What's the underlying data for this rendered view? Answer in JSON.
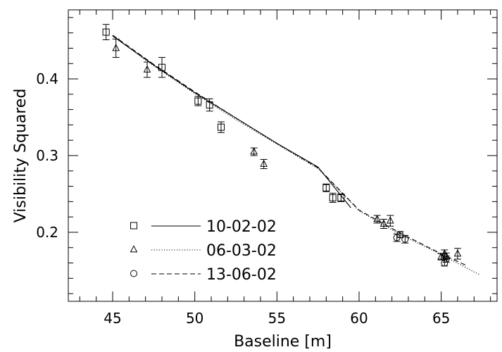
{
  "chart_data": {
    "type": "scatter",
    "title": "",
    "xlabel": "Baseline [m]",
    "ylabel": "Visibility Squared",
    "xlim": [
      42.3,
      68.4
    ],
    "ylim": [
      0.11,
      0.49
    ],
    "xticks": [
      45,
      50,
      55,
      60,
      65
    ],
    "xtick_labels": [
      "45",
      "50",
      "55",
      "60",
      "65"
    ],
    "yticks": [
      0.2,
      0.3,
      0.4
    ],
    "ytick_labels": [
      "0.2",
      "0.3",
      "0.4"
    ],
    "x_minor_step": 1,
    "y_minor_step": 0.02,
    "grid": false,
    "legend": {
      "position": "bottom-left"
    },
    "series": [
      {
        "name": "10-02-02",
        "marker": "square",
        "line_style": "solid",
        "points": [
          {
            "x": 44.6,
            "y": 0.461,
            "err": 0.01
          },
          {
            "x": 48.0,
            "y": 0.415,
            "err": 0.013
          },
          {
            "x": 50.2,
            "y": 0.371,
            "err": 0.006
          },
          {
            "x": 50.9,
            "y": 0.366,
            "err": 0.008
          },
          {
            "x": 51.6,
            "y": 0.337,
            "err": 0.007
          },
          {
            "x": 58.0,
            "y": 0.258,
            "err": 0.005
          },
          {
            "x": 58.4,
            "y": 0.245,
            "err": 0.006
          },
          {
            "x": 58.9,
            "y": 0.245,
            "err": 0.005
          }
        ],
        "model_curve": {
          "x": [
            45.0,
            47.5,
            50.0,
            52.5,
            55.0,
            57.5,
            59.5
          ],
          "y": [
            0.456,
            0.418,
            0.382,
            0.349,
            0.316,
            0.285,
            0.232
          ]
        }
      },
      {
        "name": "06-03-02",
        "marker": "triangle",
        "line_style": "dotted",
        "points": [
          {
            "x": 45.2,
            "y": 0.44,
            "err": 0.012
          },
          {
            "x": 47.1,
            "y": 0.412,
            "err": 0.01
          },
          {
            "x": 53.6,
            "y": 0.305,
            "err": 0.005
          },
          {
            "x": 54.2,
            "y": 0.289,
            "err": 0.006
          },
          {
            "x": 61.1,
            "y": 0.217,
            "err": 0.005
          },
          {
            "x": 61.5,
            "y": 0.211,
            "err": 0.006
          },
          {
            "x": 61.9,
            "y": 0.215,
            "err": 0.007
          },
          {
            "x": 65.0,
            "y": 0.168,
            "err": 0.004
          },
          {
            "x": 65.2,
            "y": 0.172,
            "err": 0.005
          },
          {
            "x": 65.3,
            "y": 0.169,
            "err": 0.004
          },
          {
            "x": 66.0,
            "y": 0.172,
            "err": 0.007
          }
        ],
        "model_curve": {
          "x": [
            45.0,
            47.5,
            50.0,
            52.5,
            55.0,
            57.5,
            60.0,
            62.5,
            65.0,
            67.3
          ],
          "y": [
            0.456,
            0.417,
            0.381,
            0.347,
            0.315,
            0.283,
            0.228,
            0.197,
            0.171,
            0.145
          ]
        }
      },
      {
        "name": "13-06-02",
        "marker": "circle",
        "line_style": "dashed",
        "points": [
          {
            "x": 62.3,
            "y": 0.193,
            "err": 0.005
          },
          {
            "x": 62.5,
            "y": 0.197,
            "err": 0.004
          },
          {
            "x": 62.8,
            "y": 0.191,
            "err": 0.005
          },
          {
            "x": 65.2,
            "y": 0.16,
            "err": 0.004
          },
          {
            "x": 65.3,
            "y": 0.165,
            "err": 0.004
          }
        ],
        "model_curve": {
          "x": [
            45.0,
            47.5,
            50.0,
            52.5,
            55.0,
            57.5,
            60.0,
            62.5,
            65.0,
            66.5
          ],
          "y": [
            0.457,
            0.419,
            0.383,
            0.349,
            0.316,
            0.284,
            0.229,
            0.199,
            0.172,
            0.157
          ]
        }
      }
    ]
  }
}
